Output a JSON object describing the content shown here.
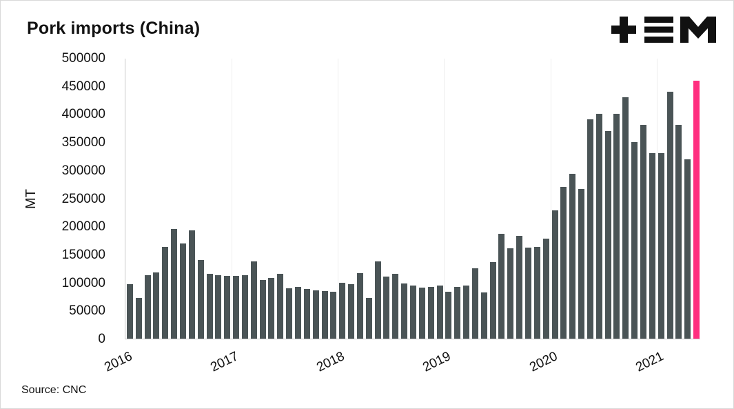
{
  "title": "Pork imports (China)",
  "source_label": "Source: CNC",
  "logo_name": "plus-triple-bar-m-logo",
  "chart_data": {
    "type": "bar",
    "title": "Pork imports (China)",
    "xlabel": "",
    "ylabel": "MT",
    "ylim": [
      0,
      500000
    ],
    "ytick_step": 50000,
    "legend": "none",
    "grid": "vertical-year-gridlines",
    "bar_color": "#4a5456",
    "highlight_bar_color": "#ff2e7f",
    "highlight_note": "latest month shown as pink bar",
    "year_tick_labels": [
      "2016",
      "2017",
      "2018",
      "2019",
      "2020",
      "2021"
    ],
    "x": [
      "2016-01",
      "2016-02",
      "2016-03",
      "2016-04",
      "2016-05",
      "2016-06",
      "2016-07",
      "2016-08",
      "2016-09",
      "2016-10",
      "2016-11",
      "2016-12",
      "2017-01",
      "2017-02",
      "2017-03",
      "2017-04",
      "2017-05",
      "2017-06",
      "2017-07",
      "2017-08",
      "2017-09",
      "2017-10",
      "2017-11",
      "2017-12",
      "2018-01",
      "2018-02",
      "2018-03",
      "2018-04",
      "2018-05",
      "2018-06",
      "2018-07",
      "2018-08",
      "2018-09",
      "2018-10",
      "2018-11",
      "2018-12",
      "2019-01",
      "2019-02",
      "2019-03",
      "2019-04",
      "2019-05",
      "2019-06",
      "2019-07",
      "2019-08",
      "2019-09",
      "2019-10",
      "2019-11",
      "2019-12",
      "2020-01",
      "2020-02",
      "2020-03",
      "2020-04",
      "2020-05",
      "2020-06",
      "2020-07",
      "2020-08",
      "2020-09",
      "2020-10",
      "2020-11",
      "2020-12",
      "2021-01",
      "2021-02",
      "2021-03",
      "2021-04",
      "2021-05"
    ],
    "values": [
      97000,
      73000,
      113000,
      118000,
      163000,
      195000,
      170000,
      193000,
      140000,
      115000,
      113000,
      112000,
      112000,
      113000,
      137000,
      105000,
      108000,
      116000,
      90000,
      92000,
      88000,
      86000,
      85000,
      83000,
      100000,
      97000,
      117000,
      72000,
      137000,
      111000,
      115000,
      98000,
      95000,
      91000,
      92000,
      95000,
      83000,
      92000,
      95000,
      125000,
      82000,
      136000,
      187000,
      161000,
      183000,
      162000,
      163000,
      178000,
      229000,
      270000,
      294000,
      267000,
      391000,
      401000,
      370000,
      400000,
      430000,
      350000,
      381000,
      330000,
      331000,
      440000,
      381000,
      320000,
      460000
    ],
    "highlight_index": 64
  }
}
